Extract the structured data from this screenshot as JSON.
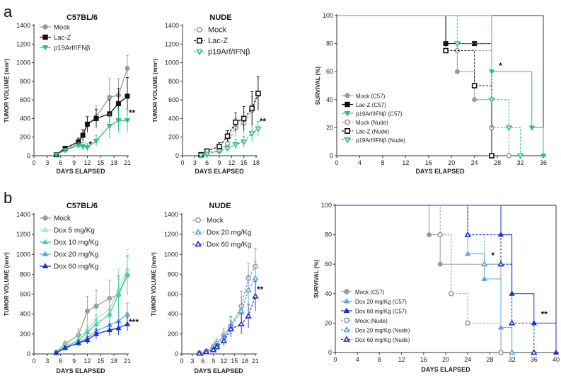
{
  "panels": [
    {
      "label": "a"
    },
    {
      "label": "b"
    }
  ],
  "chart_data": [
    {
      "panel": "a",
      "type": "line",
      "title": "C57BL/6",
      "xlabel": "DAYS ELAPSED",
      "ylabel": "TUMOR VOLUME (mm³)",
      "xlim": [
        0,
        21
      ],
      "ylim": [
        0,
        1400
      ],
      "xticks": [
        0,
        3,
        6,
        9,
        12,
        15,
        18,
        21
      ],
      "yticks": [
        0,
        200,
        400,
        600,
        800,
        1000,
        1200,
        1400
      ],
      "legend_position": "top-left",
      "series": [
        {
          "name": "Mock",
          "color": "#9a9a9a",
          "marker": "circle",
          "fill": true,
          "dash": false,
          "x": [
            5,
            7,
            10,
            11,
            12,
            14,
            17,
            19,
            21
          ],
          "y": [
            10,
            60,
            130,
            220,
            330,
            420,
            630,
            650,
            940
          ],
          "err": [
            5,
            20,
            40,
            60,
            90,
            120,
            200,
            180,
            140
          ]
        },
        {
          "name": "Lac-Z",
          "color": "#111111",
          "marker": "square",
          "fill": true,
          "dash": false,
          "x": [
            5,
            7,
            10,
            11,
            12,
            14,
            17,
            19,
            21
          ],
          "y": [
            10,
            80,
            150,
            220,
            340,
            400,
            450,
            560,
            640
          ],
          "err": [
            5,
            20,
            40,
            60,
            80,
            100,
            150,
            160,
            200
          ]
        },
        {
          "name": "p19Arf/IFNβ",
          "color": "#2bbf7a",
          "marker": "triangle-down",
          "fill": true,
          "dash": false,
          "x": [
            5,
            7,
            10,
            11,
            12,
            14,
            17,
            19,
            21
          ],
          "y": [
            10,
            60,
            110,
            100,
            90,
            160,
            320,
            380,
            380
          ],
          "err": [
            5,
            15,
            30,
            40,
            40,
            60,
            130,
            130,
            120
          ]
        }
      ],
      "annotations": [
        {
          "text": "*",
          "x": 12,
          "y": 90
        },
        {
          "text": "**",
          "x": 21,
          "y": 430
        }
      ]
    },
    {
      "panel": "a",
      "type": "line",
      "title": "NUDE",
      "xlabel": "DAYS ELAPSED",
      "ylabel": "TUMOR VOLUME (mm³)",
      "xlim": [
        0,
        18
      ],
      "ylim": [
        0,
        1400
      ],
      "xticks": [
        0,
        3,
        6,
        9,
        12,
        15,
        18
      ],
      "yticks": [
        0,
        200,
        400,
        600,
        800,
        1000,
        1200,
        1400
      ],
      "legend_position": "top-left",
      "series": [
        {
          "name": "Mock",
          "color": "#9a9a9a",
          "marker": "circle",
          "fill": false,
          "dash": true,
          "x": [
            4.5,
            6,
            9,
            11,
            13,
            15,
            17,
            18.5
          ],
          "y": [
            10,
            40,
            50,
            130,
            300,
            350,
            490,
            660
          ],
          "err": [
            5,
            15,
            20,
            50,
            100,
            120,
            150,
            170
          ]
        },
        {
          "name": "Lac-Z",
          "color": "#111111",
          "marker": "square",
          "fill": false,
          "dash": true,
          "x": [
            4.5,
            6,
            9,
            11,
            13,
            15,
            17,
            18.5
          ],
          "y": [
            10,
            50,
            100,
            210,
            360,
            400,
            510,
            670
          ],
          "err": [
            5,
            20,
            40,
            60,
            100,
            130,
            180,
            180
          ]
        },
        {
          "name": "p19Arf/IFNβ",
          "color": "#2bbf7a",
          "marker": "triangle-down",
          "fill": false,
          "dash": true,
          "x": [
            4.5,
            6,
            9,
            11,
            13,
            15,
            17,
            18.5
          ],
          "y": [
            5,
            20,
            50,
            80,
            120,
            150,
            240,
            290
          ],
          "err": [
            3,
            10,
            20,
            30,
            50,
            60,
            90,
            80
          ]
        }
      ],
      "annotations": [
        {
          "text": "**",
          "x": 18.5,
          "y": 340
        }
      ]
    },
    {
      "panel": "a",
      "type": "line",
      "subtype": "survival-step",
      "title": "",
      "xlabel": "DAYS ELAPSED",
      "ylabel": "SURVIVAL (%)",
      "xlim": [
        0,
        36
      ],
      "ylim": [
        0,
        100
      ],
      "xticks": [
        0,
        4,
        8,
        12,
        16,
        20,
        24,
        28,
        32,
        36
      ],
      "yticks": [
        0,
        20,
        40,
        60,
        80,
        100
      ],
      "legend_position": "bottom-left",
      "series": [
        {
          "name": "Mock (C57)",
          "color": "#9a9a9a",
          "marker": "circle",
          "fill": true,
          "dash": false,
          "x": [
            0,
            19,
            21,
            24,
            27
          ],
          "y": [
            100,
            80,
            60,
            40,
            0
          ]
        },
        {
          "name": "Lac-Z (C57)",
          "color": "#111111",
          "marker": "square",
          "fill": true,
          "dash": false,
          "x": [
            0,
            19,
            24,
            27
          ],
          "y": [
            100,
            80,
            80,
            0
          ]
        },
        {
          "name": "p19Arf/IFNβ (C57)",
          "color": "#2bbf7a",
          "marker": "triangle-down",
          "fill": true,
          "dash": false,
          "x": [
            0,
            27,
            34,
            36
          ],
          "y": [
            100,
            60,
            20,
            0
          ]
        },
        {
          "name": "Mock (Nude)",
          "color": "#9a9a9a",
          "marker": "circle",
          "fill": false,
          "dash": true,
          "x": [
            0,
            19,
            21,
            27,
            30
          ],
          "y": [
            100,
            75,
            75,
            20,
            0
          ]
        },
        {
          "name": "Lac-Z (Nude)",
          "color": "#111111",
          "marker": "square",
          "fill": false,
          "dash": true,
          "x": [
            0,
            19,
            24,
            27
          ],
          "y": [
            100,
            75,
            50,
            0
          ]
        },
        {
          "name": "p19Arf/IFNβ (Nude)",
          "color": "#2bbf7a",
          "marker": "triangle-down",
          "fill": false,
          "dash": true,
          "x": [
            0,
            21,
            27,
            30,
            32
          ],
          "y": [
            100,
            80,
            40,
            20,
            0
          ]
        }
      ],
      "annotations": [
        {
          "text": "*",
          "x": 28,
          "y": 62
        }
      ]
    },
    {
      "panel": "b",
      "type": "line",
      "title": "C57BL/6",
      "xlabel": "DAYS ELAPSED",
      "ylabel": "TUMOR VOLUME (mm³)",
      "xlim": [
        0,
        21
      ],
      "ylim": [
        0,
        1400
      ],
      "xticks": [
        0,
        3,
        6,
        9,
        12,
        15,
        18,
        21
      ],
      "yticks": [
        0,
        200,
        400,
        600,
        800,
        1000,
        1200,
        1400
      ],
      "legend_position": "top-left",
      "series": [
        {
          "name": "Mock",
          "color": "#9a9a9a",
          "marker": "circle",
          "fill": true,
          "dash": false,
          "x": [
            5,
            7,
            10,
            12,
            14,
            17,
            19,
            21
          ],
          "y": [
            20,
            100,
            190,
            430,
            480,
            560,
            590,
            790
          ],
          "err": [
            10,
            30,
            60,
            150,
            160,
            180,
            200,
            200
          ]
        },
        {
          "name": "Dox 5 mg/Kg",
          "color": "#a8e6c8",
          "marker": "triangle-up",
          "fill": true,
          "dash": false,
          "x": [
            5,
            7,
            10,
            12,
            14,
            17,
            19,
            21
          ],
          "y": [
            15,
            80,
            150,
            250,
            350,
            450,
            650,
            850
          ],
          "err": [
            8,
            25,
            50,
            80,
            100,
            150,
            200,
            200
          ]
        },
        {
          "name": "Dox 10 mg/Kg",
          "color": "#3dd6a0",
          "marker": "triangle-up",
          "fill": true,
          "dash": false,
          "x": [
            5,
            7,
            10,
            12,
            14,
            17,
            19,
            21
          ],
          "y": [
            15,
            70,
            130,
            220,
            300,
            400,
            600,
            800
          ],
          "err": [
            8,
            20,
            40,
            70,
            90,
            130,
            180,
            180
          ]
        },
        {
          "name": "Dox 20 mg/Kg",
          "color": "#5ba4e6",
          "marker": "triangle-up",
          "fill": true,
          "dash": false,
          "x": [
            5,
            7,
            10,
            12,
            14,
            17,
            19,
            21
          ],
          "y": [
            10,
            60,
            110,
            160,
            230,
            290,
            330,
            400
          ],
          "err": [
            5,
            20,
            30,
            50,
            60,
            80,
            90,
            110
          ]
        },
        {
          "name": "Dox 60 mg/Kg",
          "color": "#1a2fcc",
          "marker": "triangle-up",
          "fill": true,
          "dash": false,
          "x": [
            5,
            7,
            10,
            12,
            14,
            17,
            19,
            21
          ],
          "y": [
            10,
            60,
            110,
            140,
            200,
            240,
            260,
            300
          ],
          "err": [
            5,
            15,
            30,
            40,
            50,
            60,
            70,
            70
          ]
        }
      ],
      "annotations": [
        {
          "text": "***",
          "x": 21,
          "y": 290
        }
      ]
    },
    {
      "panel": "b",
      "type": "line",
      "title": "NUDE",
      "xlabel": "DAYS ELAPSED",
      "ylabel": "TUMOR VOLUME (mm³)",
      "xlim": [
        0,
        21
      ],
      "ylim": [
        0,
        1400
      ],
      "xticks": [
        0,
        3,
        6,
        9,
        12,
        15,
        18,
        21
      ],
      "yticks": [
        0,
        200,
        400,
        600,
        800,
        1000,
        1200,
        1400
      ],
      "legend_position": "top-left",
      "series": [
        {
          "name": "Mock",
          "color": "#9a9a9a",
          "marker": "circle",
          "fill": false,
          "dash": true,
          "x": [
            5,
            7,
            9,
            10,
            12,
            14,
            17,
            19,
            21
          ],
          "y": [
            10,
            30,
            70,
            110,
            190,
            280,
            480,
            760,
            880
          ],
          "err": [
            5,
            15,
            30,
            40,
            70,
            100,
            150,
            150,
            180
          ]
        },
        {
          "name": "Dox 20 mg/Kg",
          "color": "#5ba4e6",
          "marker": "triangle-up",
          "fill": false,
          "dash": true,
          "x": [
            5,
            7,
            9,
            10,
            12,
            14,
            17,
            19,
            21
          ],
          "y": [
            5,
            20,
            50,
            90,
            170,
            280,
            430,
            640,
            760
          ],
          "err": [
            3,
            10,
            25,
            40,
            60,
            90,
            140,
            150,
            170
          ]
        },
        {
          "name": "Dox 60 mg/Kg",
          "color": "#1a2fcc",
          "marker": "triangle-up",
          "fill": false,
          "dash": true,
          "x": [
            5,
            7,
            9,
            10,
            12,
            14,
            17,
            19,
            21
          ],
          "y": [
            5,
            20,
            40,
            70,
            130,
            250,
            300,
            380,
            580
          ],
          "err": [
            3,
            10,
            20,
            30,
            50,
            80,
            100,
            120,
            150
          ]
        }
      ],
      "annotations": [
        {
          "text": "**",
          "x": 21,
          "y": 620
        }
      ]
    },
    {
      "panel": "b",
      "type": "line",
      "subtype": "survival-step",
      "title": "",
      "xlabel": "DAYS ELAPSED",
      "ylabel": "SURVIVAL (%)",
      "xlim": [
        0,
        40
      ],
      "ylim": [
        0,
        100
      ],
      "xticks": [
        0,
        4,
        8,
        12,
        16,
        20,
        24,
        28,
        32,
        36,
        40
      ],
      "yticks": [
        0,
        20,
        40,
        60,
        80,
        100
      ],
      "legend_position": "bottom-left",
      "series": [
        {
          "name": "Mock (C57)",
          "color": "#9a9a9a",
          "marker": "circle",
          "fill": true,
          "dash": false,
          "x": [
            0,
            17,
            19,
            30
          ],
          "y": [
            100,
            80,
            60,
            0
          ]
        },
        {
          "name": "Dox 20 mg/Kg (C57)",
          "color": "#5ba4e6",
          "marker": "triangle-up",
          "fill": true,
          "dash": false,
          "x": [
            0,
            24,
            27,
            30,
            32
          ],
          "y": [
            100,
            67,
            50,
            17,
            0
          ]
        },
        {
          "name": "Dox 60 mg/Kg (C57)",
          "color": "#1a2fcc",
          "marker": "triangle-up",
          "fill": true,
          "dash": false,
          "x": [
            0,
            30,
            32,
            36,
            40
          ],
          "y": [
            100,
            80,
            40,
            20,
            0
          ]
        },
        {
          "name": "Mock (Nude)",
          "color": "#9a9a9a",
          "marker": "circle",
          "fill": false,
          "dash": true,
          "x": [
            0,
            19,
            21,
            24,
            30
          ],
          "y": [
            100,
            80,
            40,
            20,
            0
          ]
        },
        {
          "name": "Dox 20 mg/Kg (Nude)",
          "color": "#5ba4e6",
          "marker": "triangle-up",
          "fill": false,
          "dash": true,
          "x": [
            0,
            24,
            27,
            30,
            32
          ],
          "y": [
            100,
            80,
            60,
            60,
            0
          ]
        },
        {
          "name": "Dox 60 mg/Kg (Nude)",
          "color": "#1a2fcc",
          "marker": "triangle-up",
          "fill": false,
          "dash": true,
          "x": [
            0,
            24,
            30,
            32,
            36
          ],
          "y": [
            100,
            80,
            60,
            20,
            0
          ]
        }
      ],
      "annotations": [
        {
          "text": "*",
          "x": 28,
          "y": 64
        },
        {
          "text": "**",
          "x": 37,
          "y": 24
        }
      ]
    }
  ]
}
